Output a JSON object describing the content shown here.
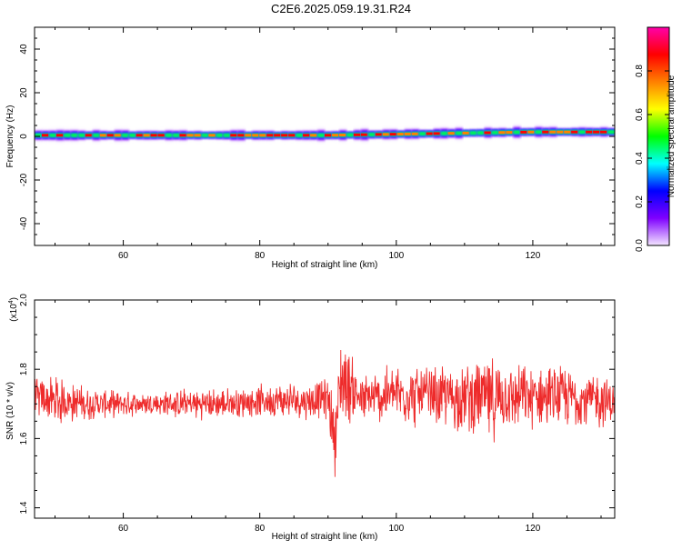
{
  "chart_data": [
    {
      "type": "heatmap",
      "title": "C2E6.2025.059.19.31.R24",
      "xlabel": "Height of straight line (km)",
      "ylabel": "Frequency (Hz)",
      "xlim": [
        47,
        132
      ],
      "ylim": [
        -50,
        50
      ],
      "xticks": [
        60,
        80,
        100,
        120
      ],
      "yticks": [
        40,
        20,
        0,
        -20,
        -40
      ],
      "grid": false,
      "ridge": {
        "frequency_hz": [
          0.5,
          0.5,
          0.5,
          0.5,
          1.0,
          1.5,
          2.0,
          2.0
        ],
        "at_height_km": [
          47,
          60,
          80,
          90,
          100,
          110,
          120,
          132
        ]
      },
      "colorbar": {
        "label": "Normalized spectral amplitude",
        "ticks": [
          "0.0",
          "0.2",
          "0.4",
          "0.6",
          "0.8"
        ],
        "range": [
          0,
          1
        ],
        "colors": [
          "#f4e6ff",
          "#7f00ff",
          "#0000ff",
          "#00ffff",
          "#00ff00",
          "#ffff00",
          "#ff8000",
          "#ff0000",
          "#ff00aa"
        ]
      }
    },
    {
      "type": "line",
      "xlabel": "Height of straight line (km)",
      "ylabel": "SNR (10 * v/v)",
      "y_multiplier": "(x10",
      "y_multiplier_exp": "4",
      "y_multiplier_close": ")",
      "xlim": [
        47,
        132
      ],
      "ylim": [
        1.37,
        2.0
      ],
      "xticks": [
        60,
        80,
        100,
        120
      ],
      "yticks": [
        "2.0",
        "1.8",
        "1.6",
        "1.4"
      ],
      "ytick_values": [
        2.0,
        1.8,
        1.6,
        1.4
      ],
      "color": "#ee2b2b",
      "series": [
        {
          "x": [
            47,
            50,
            55,
            60,
            65,
            70,
            75,
            80,
            85,
            88,
            90,
            91,
            91.5,
            92,
            95,
            100,
            105,
            110,
            113,
            113.5,
            115,
            120,
            125,
            130,
            132
          ],
          "y": [
            1.72,
            1.71,
            1.7,
            1.7,
            1.7,
            1.7,
            1.7,
            1.71,
            1.71,
            1.71,
            1.72,
            1.6,
            1.7,
            1.78,
            1.71,
            1.73,
            1.72,
            1.72,
            1.72,
            1.7,
            1.72,
            1.72,
            1.72,
            1.71,
            1.7
          ],
          "amplitude": [
            0.06,
            0.08,
            0.05,
            0.04,
            0.04,
            0.05,
            0.05,
            0.05,
            0.06,
            0.06,
            0.07,
            0.12,
            0.15,
            0.15,
            0.08,
            0.1,
            0.1,
            0.11,
            0.13,
            0.16,
            0.11,
            0.1,
            0.1,
            0.09,
            0.07
          ]
        }
      ]
    }
  ]
}
